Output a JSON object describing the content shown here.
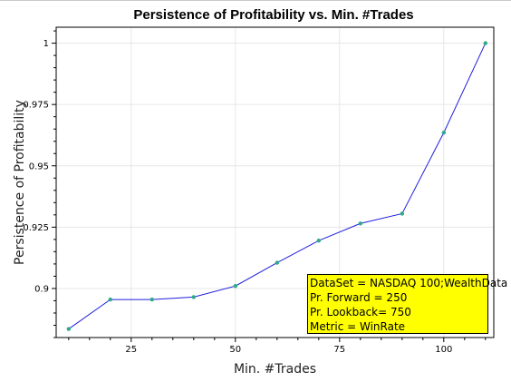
{
  "window": {
    "accent_color": "#c8c8c8"
  },
  "chart_data": {
    "type": "line",
    "title": "Persistence of Profitability vs. Min. #Trades",
    "xlabel": "Min. #Trades",
    "ylabel": "Persistence of Profitability",
    "xlim": [
      7,
      112
    ],
    "ylim": [
      0.88,
      1.0065
    ],
    "x_ticks": [
      25,
      50,
      75,
      100
    ],
    "x_tick_labels": [
      "25",
      "50",
      "75",
      "100"
    ],
    "y_ticks": [
      0.9,
      0.925,
      0.95,
      0.975,
      1
    ],
    "y_tick_labels": [
      "0.9",
      "0.925",
      "0.95",
      "0.975",
      "1"
    ],
    "grid": true,
    "series": [
      {
        "line_color": "#1f1fe0",
        "marker_color": "#2eaa88",
        "x": [
          10,
          20,
          30,
          40,
          50,
          60,
          70,
          80,
          90,
          100,
          110
        ],
        "values": [
          0.8835,
          0.8955,
          0.8955,
          0.8965,
          0.901,
          0.9105,
          0.9195,
          0.9265,
          0.9305,
          0.9635,
          1.0
        ]
      }
    ],
    "annotation": {
      "placement": "bottom-right",
      "background": "#ffff00",
      "lines": [
        "DataSet = NASDAQ 100;WealthData",
        "Pr. Forward = 250",
        "Pr. Lookback= 750",
        "Metric = WinRate"
      ]
    }
  }
}
